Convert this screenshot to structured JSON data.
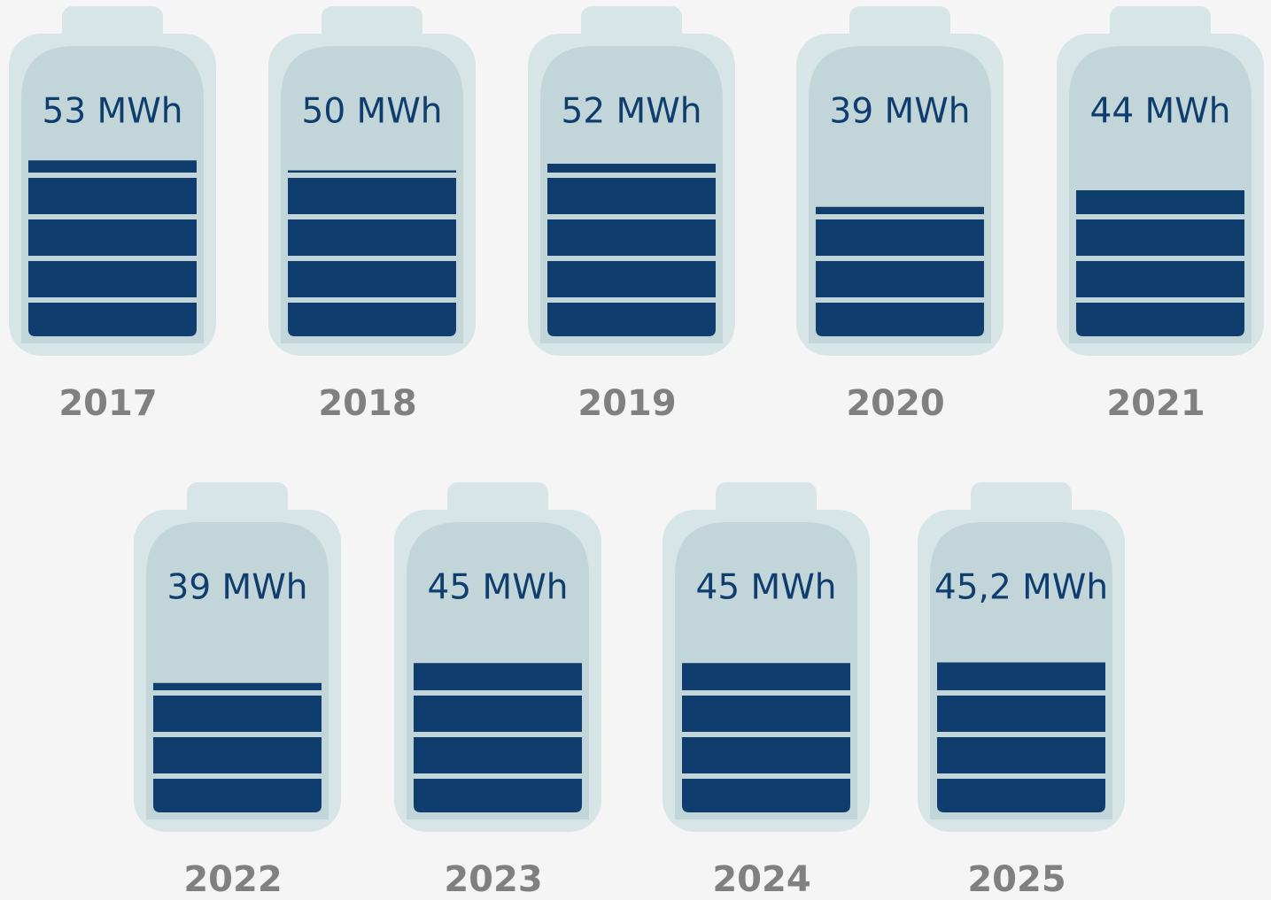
{
  "chart_data": {
    "type": "battery",
    "categories": [
      "2017",
      "2018",
      "2019",
      "2020",
      "2021",
      "2022",
      "2023",
      "2024",
      "2025"
    ],
    "values": [
      53,
      50,
      52,
      39,
      44,
      39,
      45,
      45,
      45.2
    ],
    "value_labels": [
      "53 MWh",
      "50 MWh",
      "52 MWh",
      "39 MWh",
      "44 MWh",
      "39 MWh",
      "45 MWh",
      "45 MWh",
      "45,2 MWh"
    ],
    "color": "#0f3d6e"
  }
}
